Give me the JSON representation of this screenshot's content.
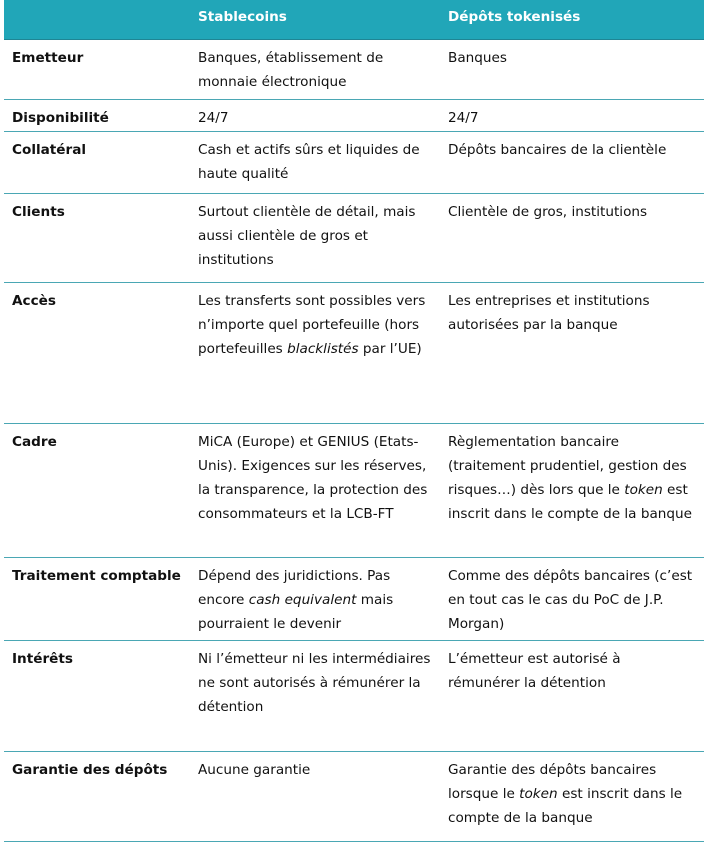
{
  "table": {
    "header": [
      "Stablecoins",
      "Dépôts tokenisés"
    ],
    "rows": [
      {
        "label": "Emetteur",
        "cells": [
          [
            {
              "text": "Banques, établissement de monnaie électronique"
            }
          ],
          [
            {
              "text": "Banques"
            }
          ]
        ]
      },
      {
        "label": "Disponibilité",
        "cells": [
          [
            {
              "text": "24/7"
            }
          ],
          [
            {
              "text": "24/7"
            }
          ]
        ]
      },
      {
        "label": "Collatéral",
        "cells": [
          [
            {
              "text": "Cash et actifs sûrs et liquides de haute qualité"
            }
          ],
          [
            {
              "text": "Dépôts bancaires de la clientèle"
            }
          ]
        ]
      },
      {
        "label": "Clients",
        "cells": [
          [
            {
              "text": "Surtout clientèle de détail, mais aussi clientèle de gros et institutions"
            }
          ],
          [
            {
              "text": "Clientèle de gros, institutions"
            }
          ]
        ]
      },
      {
        "label": "Accès",
        "cells": [
          [
            {
              "text": "Les transferts sont possibles vers n’importe quel portefeuille (hors portefeuilles "
            },
            {
              "text": "blacklistés",
              "italic": true
            },
            {
              "text": " par l’UE)"
            }
          ],
          [
            {
              "text": "Les entreprises et institutions autorisées par la banque"
            }
          ]
        ]
      },
      {
        "label": "Cadre",
        "cells": [
          [
            {
              "text": "MiCA (Europe) et GENIUS (Etats-Unis). Exigences sur les réserves, la transparence, la protection des consommateurs et la LCB-FT"
            }
          ],
          [
            {
              "text": "Règlementation bancaire (traitement prudentiel, gestion des risques…) dès lors que le "
            },
            {
              "text": "token",
              "italic": true
            },
            {
              "text": " est inscrit dans le compte de la banque"
            }
          ]
        ]
      },
      {
        "label": "Traitement comptable",
        "cells": [
          [
            {
              "text": "Dépend des juridictions. Pas encore "
            },
            {
              "text": "cash equivalent",
              "italic": true
            },
            {
              "text": " mais pourraient le devenir"
            }
          ],
          [
            {
              "text": "Comme des dépôts bancaires (c’est en tout cas le cas du PoC de J.P. Morgan)"
            }
          ]
        ]
      },
      {
        "label": "Intérêts",
        "cells": [
          [
            {
              "text": "Ni l’émetteur ni les intermédiaires ne sont autorisés à rémunérer la détention"
            }
          ],
          [
            {
              "text": "L’émetteur est autorisé à rémunérer la détention"
            }
          ]
        ]
      },
      {
        "label": "Garantie des dépôts",
        "cells": [
          [
            {
              "text": "Aucune garantie"
            }
          ],
          [
            {
              "text": "Garantie des dépôts bancaires lorsque le "
            },
            {
              "text": "token",
              "italic": true
            },
            {
              "text": " est inscrit dans le compte de la banque"
            }
          ]
        ]
      }
    ]
  }
}
